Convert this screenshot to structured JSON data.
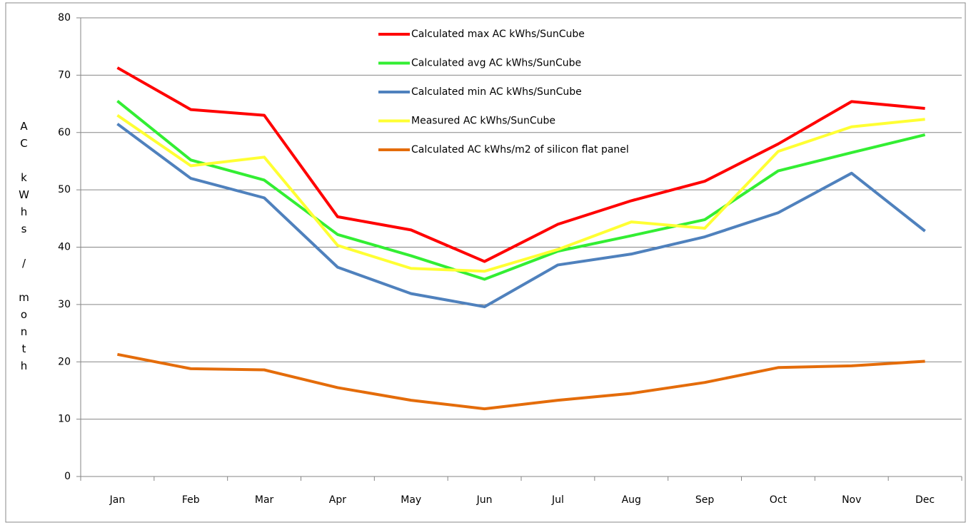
{
  "chart_data": {
    "type": "line",
    "y_label": "AC kWhs / month",
    "categories": [
      "Jan",
      "Feb",
      "Mar",
      "Apr",
      "May",
      "Jun",
      "Jul",
      "Aug",
      "Sep",
      "Oct",
      "Nov",
      "Dec"
    ],
    "ylim": [
      0,
      80
    ],
    "yticks": [
      0,
      10,
      20,
      30,
      40,
      50,
      60,
      70,
      80
    ],
    "grid": true,
    "legend": "top",
    "series": [
      {
        "name": "Calculated max AC kWhs/SunCube",
        "color": "#ff0000",
        "values": [
          71.3,
          64,
          63,
          45.3,
          43,
          37.5,
          44,
          48.1,
          51.5,
          58,
          65.4,
          64.2
        ]
      },
      {
        "name": "Calculated avg AC kWhs/SunCube",
        "color": "#33ee33",
        "values": [
          65.5,
          55.2,
          51.7,
          42.2,
          38.5,
          34.4,
          39.3,
          42,
          44.8,
          53.3,
          56.5,
          59.6
        ]
      },
      {
        "name": "Calculated min AC kWhs/SunCube",
        "color": "#4f81bd",
        "values": [
          61.5,
          52,
          48.6,
          36.5,
          31.9,
          29.6,
          36.9,
          38.8,
          41.8,
          46,
          52.9,
          42.8
        ]
      },
      {
        "name": "Measured AC kWhs/SunCube",
        "color": "#ffff33",
        "values": [
          63,
          54.2,
          55.7,
          40.3,
          36.3,
          35.8,
          39.6,
          44.4,
          43.3,
          56.7,
          61,
          62.3
        ]
      },
      {
        "name": "Calculated AC kWhs/m2 of silicon flat panel",
        "color": "#e46c0a",
        "values": [
          21.3,
          18.8,
          18.6,
          15.5,
          13.3,
          11.8,
          13.3,
          14.5,
          16.4,
          19,
          19.3,
          20.1
        ]
      }
    ]
  }
}
